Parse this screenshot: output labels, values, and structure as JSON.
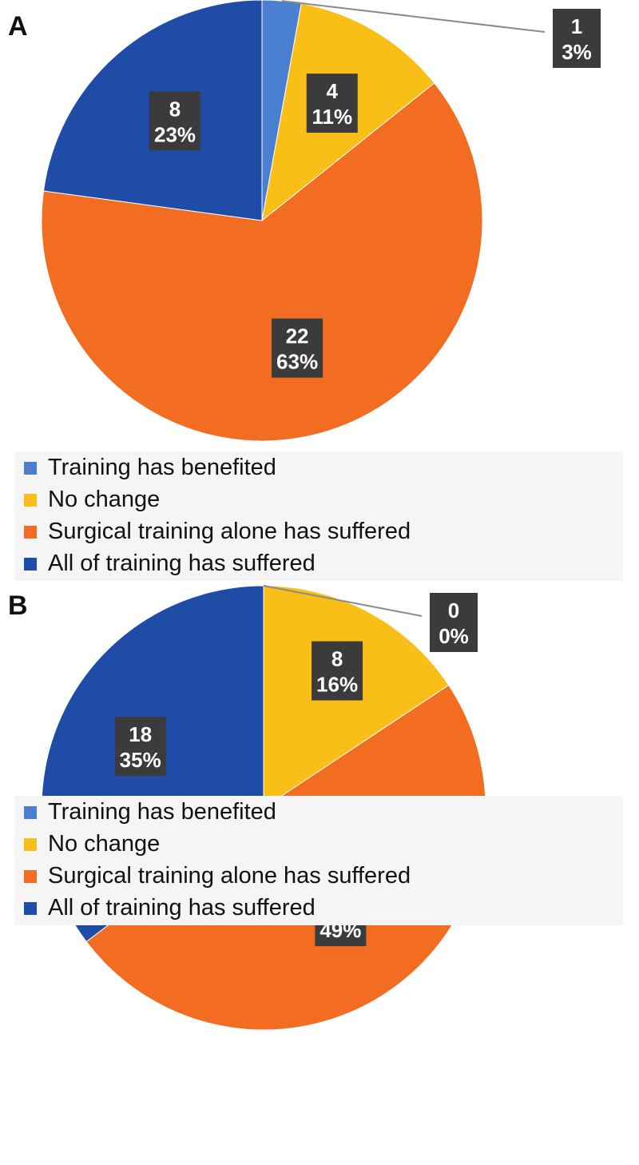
{
  "chart_data": [
    {
      "type": "pie",
      "panel_label": "A",
      "categories": [
        "Training has benefited",
        "No change",
        "Surgical training alone has suffered",
        "All of training has suffered"
      ],
      "values": [
        1,
        4,
        22,
        8
      ],
      "percent_labels": [
        "3%",
        "11%",
        "63%",
        "23%"
      ],
      "colors": [
        "#4a7fd2",
        "#f9bf17",
        "#f26c22",
        "#1f4ca6"
      ],
      "legend_position": "bottom"
    },
    {
      "type": "pie",
      "panel_label": "B",
      "categories": [
        "Training has benefited",
        "No change",
        "Surgical training alone has suffered",
        "All of training has suffered"
      ],
      "values": [
        0,
        8,
        25,
        18
      ],
      "percent_labels": [
        "0%",
        "16%",
        "49%",
        "35%"
      ],
      "colors": [
        "#4a7fd2",
        "#f9bf17",
        "#f26c22",
        "#1f4ca6"
      ],
      "legend_position": "bottom"
    }
  ]
}
